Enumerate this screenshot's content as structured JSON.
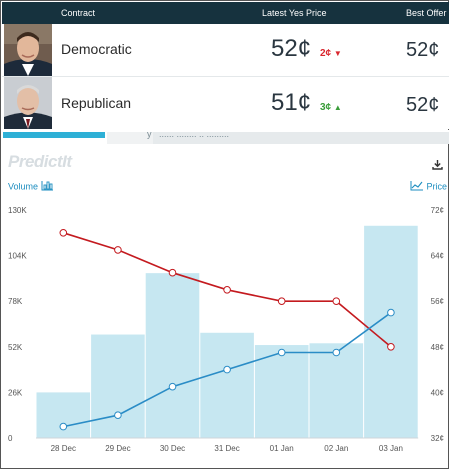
{
  "header": {
    "col_contract": "Contract",
    "col_latest": "Latest Yes Price",
    "col_offer": "Best Offer"
  },
  "contracts": [
    {
      "name": "Democratic",
      "price": "52¢",
      "change": "2¢",
      "direction": "down",
      "change_color": "#d9272e",
      "best_offer": "52¢"
    },
    {
      "name": "Republican",
      "price": "51¢",
      "change": "3¢",
      "direction": "up",
      "change_color": "#3a9d3a",
      "best_offer": "52¢"
    }
  ],
  "tabs": {
    "tab_2_label": "y",
    "tab_3_label": "...... ........ .. ........."
  },
  "logo": "PredictIt",
  "toggles": {
    "volume_label": "Volume",
    "price_label": "Price"
  },
  "icons": {
    "download": "download-icon",
    "volume": "bar-chart-icon",
    "price": "line-chart-icon"
  },
  "colors": {
    "header_bg": "#16323e",
    "bar": "#c6e7f1",
    "democratic_line": "#c41a1f",
    "republican_line": "#2a8cc6",
    "axis_text": "#555555"
  },
  "chart_data": {
    "type": "bar+line",
    "categories": [
      "28 Dec",
      "29 Dec",
      "30 Dec",
      "31 Dec",
      "01 Jan",
      "02 Jan",
      "03 Jan"
    ],
    "volume": {
      "axis": "left",
      "ylim": [
        0,
        130000
      ],
      "ticks": [
        "0",
        "26K",
        "52K",
        "78K",
        "104K",
        "130K"
      ],
      "values": [
        26000,
        59000,
        94000,
        60000,
        53000,
        54000,
        121000
      ]
    },
    "price_axis": {
      "axis": "right",
      "ylim": [
        32,
        72
      ],
      "ticks": [
        "32¢",
        "40¢",
        "48¢",
        "56¢",
        "64¢",
        "72¢"
      ]
    },
    "series": [
      {
        "values": [
          68,
          65,
          61,
          58,
          56,
          56,
          48
        ],
        "color": "#c41a1f"
      },
      {
        "values": [
          34,
          36,
          41,
          44,
          47,
          47,
          54
        ],
        "color": "#2a8cc6"
      }
    ],
    "grid": false
  }
}
